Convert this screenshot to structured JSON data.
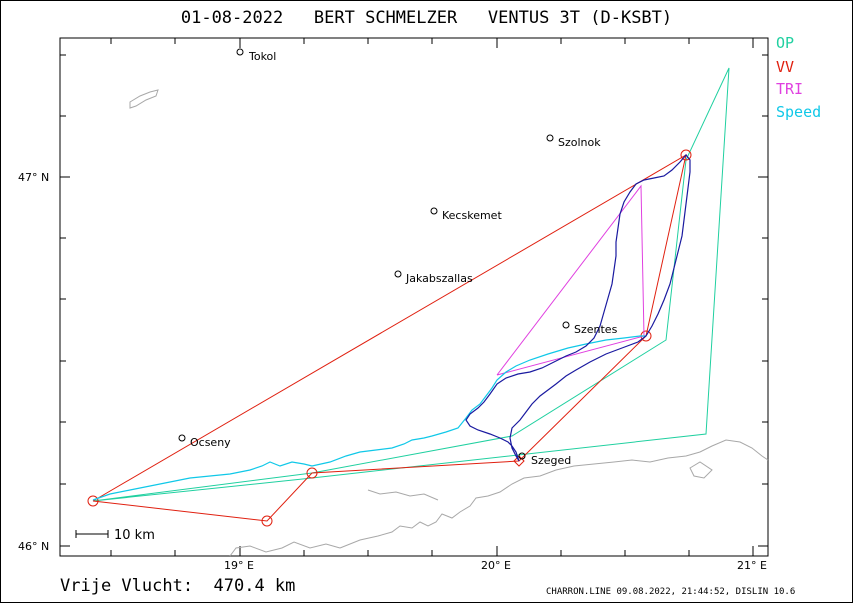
{
  "title": "01-08-2022   BERT SCHMELZER   VENTUS 3T (D-KSBT)",
  "legend": [
    {
      "label": "OP",
      "color": "#20d0a0"
    },
    {
      "label": "VV",
      "color": "#e02010"
    },
    {
      "label": "TRI",
      "color": "#e040e0"
    },
    {
      "label": "Speed",
      "color": "#10c8e8"
    }
  ],
  "axes": {
    "lat_labels": [
      "47° N",
      "46° N"
    ],
    "lon_labels": [
      "19° E",
      "20° E",
      "21° E"
    ]
  },
  "places": [
    {
      "name": "Tokol"
    },
    {
      "name": "Szolnok"
    },
    {
      "name": "Kecskemet"
    },
    {
      "name": "Jakabszallas"
    },
    {
      "name": "Szentes"
    },
    {
      "name": "Ocseny"
    },
    {
      "name": "Szeged"
    }
  ],
  "scale_bar": "10 km",
  "distance_label": "Vrije Vlucht:  470.4 km",
  "footer": "CHARRON.LINE 09.08.2022, 21:44:52, DISLIN 10.6",
  "colors": {
    "track": "#1a1aa0",
    "border": "#a8a8a8"
  }
}
